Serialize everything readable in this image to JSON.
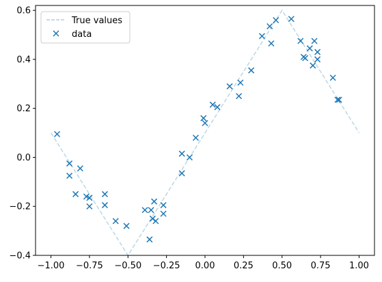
{
  "chart_data": {
    "type": "scatter",
    "title": "",
    "xlabel": "",
    "ylabel": "",
    "xlim": [
      -1.1,
      1.1
    ],
    "ylim": [
      -0.4,
      0.62
    ],
    "x_ticks": [
      -1.0,
      -0.75,
      -0.5,
      -0.25,
      0.0,
      0.25,
      0.5,
      0.75,
      1.0
    ],
    "x_tick_labels": [
      "−1.00",
      "−0.75",
      "−0.50",
      "−0.25",
      "0.00",
      "0.25",
      "0.50",
      "0.75",
      "1.00"
    ],
    "y_ticks": [
      -0.4,
      -0.2,
      0.0,
      0.2,
      0.4,
      0.6
    ],
    "y_tick_labels": [
      "−0.4",
      "−0.2",
      "0.0",
      "0.2",
      "0.4",
      "0.6"
    ],
    "grid": false,
    "legend": {
      "placement": "top-left",
      "entries": [
        {
          "label": "True values",
          "style": "dashed-line",
          "color": "#aed0df"
        },
        {
          "label": "data",
          "style": "x-marker",
          "color": "#1f77b4"
        }
      ]
    },
    "series": [
      {
        "name": "True values",
        "type": "line",
        "style": "dashed",
        "color": "#aed0df",
        "x": [
          -1.0,
          -0.5,
          0.5,
          1.0
        ],
        "y": [
          0.1,
          -0.4,
          0.6,
          0.1
        ]
      },
      {
        "name": "data",
        "type": "scatter",
        "marker": "x",
        "color": "#1f77b4",
        "x": [
          -0.96,
          -0.88,
          -0.88,
          -0.84,
          -0.81,
          -0.77,
          -0.75,
          -0.75,
          -0.65,
          -0.65,
          -0.58,
          -0.51,
          -0.39,
          -0.36,
          -0.35,
          -0.34,
          -0.33,
          -0.32,
          -0.27,
          -0.27,
          -0.15,
          -0.15,
          -0.1,
          -0.06,
          -0.01,
          0.0,
          0.05,
          0.08,
          0.16,
          0.22,
          0.23,
          0.3,
          0.37,
          0.42,
          0.43,
          0.46,
          0.56,
          0.62,
          0.64,
          0.65,
          0.68,
          0.7,
          0.71,
          0.73,
          0.73,
          0.83,
          0.86,
          0.87
        ],
        "y": [
          0.095,
          -0.025,
          -0.075,
          -0.15,
          -0.045,
          -0.16,
          -0.165,
          -0.2,
          -0.15,
          -0.195,
          -0.26,
          -0.28,
          -0.215,
          -0.335,
          -0.215,
          -0.25,
          -0.18,
          -0.26,
          -0.195,
          -0.23,
          -0.065,
          0.015,
          0.0,
          0.08,
          0.16,
          0.14,
          0.215,
          0.205,
          0.29,
          0.25,
          0.305,
          0.355,
          0.495,
          0.535,
          0.465,
          0.56,
          0.565,
          0.475,
          0.41,
          0.405,
          0.445,
          0.375,
          0.475,
          0.43,
          0.4,
          0.325,
          0.235,
          0.235
        ]
      }
    ]
  }
}
